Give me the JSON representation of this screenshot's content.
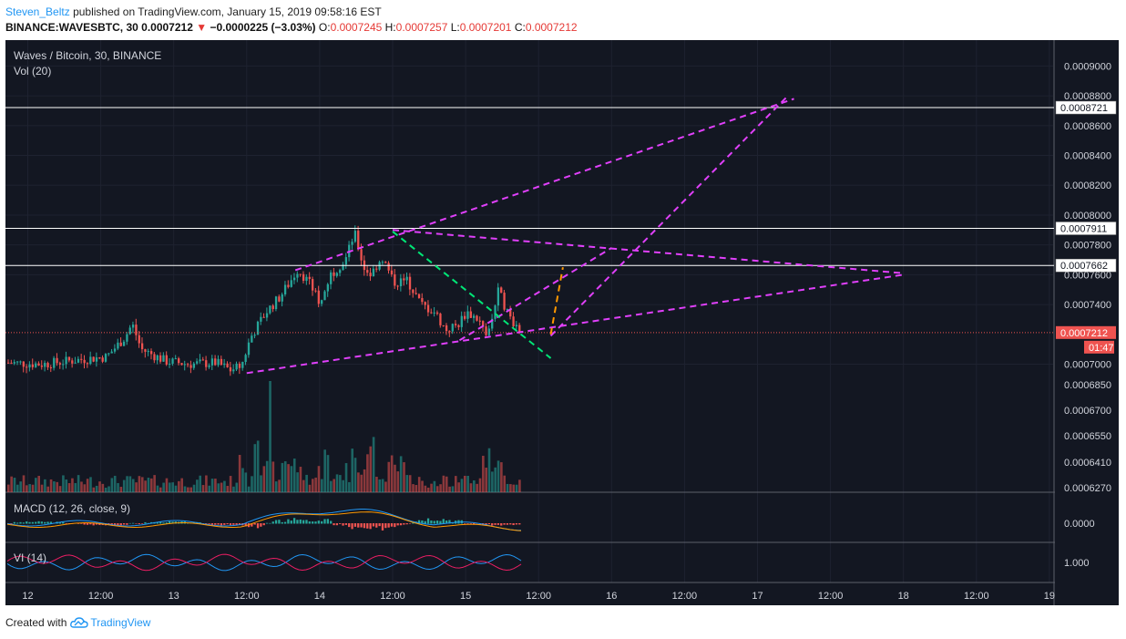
{
  "header": {
    "user": "Steven_Beltz",
    "published_text": "published on TradingView.com, January 15, 2019 09:58:16 EST",
    "symbol": "BINANCE:WAVESBTC, 30",
    "price": "0.0007212",
    "change_arrow": "▼",
    "change": "−0.0000225 (−3.03%)",
    "o_label": "O:",
    "o_value": "0.0007245",
    "h_label": "H:",
    "h_value": "0.0007257",
    "l_label": "L:",
    "l_value": "0.0007201",
    "c_label": "C:",
    "c_value": "0.0007212"
  },
  "pane_labels": {
    "main_title": "Waves / Bitcoin, 30, BINANCE",
    "volume": "Vol (20)",
    "macd": "MACD (12, 26, close, 9)",
    "vi": "VI (14)"
  },
  "footer": {
    "created_with": "Created with",
    "brand": "TradingView"
  },
  "colors": {
    "background": "#131722",
    "up": "#26a69a",
    "down": "#ef5350",
    "trendline": "#e040fb",
    "green_line": "#00e676",
    "orange_line": "#ff9800",
    "macd_line": "#2196f3",
    "signal_line": "#ff9800",
    "vi_plus": "#2196f3",
    "vi_minus": "#e91e63"
  },
  "chart_data": {
    "type": "candlestick",
    "price_axis": {
      "ticks": [
        "0.0009000",
        "0.0008800",
        "0.0008600",
        "0.0008400",
        "0.0008200",
        "0.0008000",
        "0.0007800",
        "0.0007600",
        "0.0007400",
        "0.0007000"
      ],
      "ylim": [
        0.00069,
        0.0009
      ]
    },
    "volume_axis": {
      "ticks": [
        "0.0006850",
        "0.0006700",
        "0.0006550",
        "0.0006410",
        "0.0006270"
      ]
    },
    "macd_axis": {
      "ticks": [
        "0.0000"
      ]
    },
    "vi_axis": {
      "ticks": [
        "1.000"
      ]
    },
    "time_axis": {
      "labels": [
        "12",
        "12:00",
        "13",
        "12:00",
        "14",
        "12:00",
        "15",
        "12:00",
        "16",
        "12:00",
        "17",
        "12:00",
        "18",
        "12:00",
        "19"
      ]
    },
    "horizontal_levels": [
      {
        "value": 0.0008721,
        "label": "0.0008721"
      },
      {
        "value": 0.0007911,
        "label": "0.0007911"
      },
      {
        "value": 0.0007662,
        "label": "0.0007662"
      }
    ],
    "last_price": {
      "value": 0.0007212,
      "label": "0.0007212",
      "countdown": "01:47"
    },
    "candles_summary": {
      "from_day": "12",
      "to_day": "15",
      "start": 0.0007,
      "pre_rally_low": 0.000694,
      "peak_high": 0.00079,
      "last_close": 0.0007212
    },
    "trendlines_magenta": [
      {
        "from": [
          "13 12:00",
          0.000694
        ],
        "to": [
          "18",
          0.00076
        ]
      },
      {
        "from": [
          "13 20:00",
          0.000763
        ],
        "to": [
          "17 06:00",
          0.000878
        ]
      },
      {
        "from": [
          "14 12:00",
          0.00079
        ],
        "to": [
          "18",
          0.000761
        ]
      },
      {
        "from": [
          "14 23:00",
          0.000716
        ],
        "to": [
          "16 00:00",
          0.000778
        ]
      },
      {
        "from": [
          "15 14:00",
          0.000719
        ],
        "to": [
          "17 05:00",
          0.00088
        ]
      }
    ],
    "trendline_green": {
      "from": [
        "14 12:00",
        0.000789
      ],
      "to": [
        "15 14:00",
        0.000704
      ]
    },
    "trendline_orange": {
      "from": [
        "15 14:00",
        0.00072
      ],
      "to": [
        "15 16:00",
        0.000765
      ]
    }
  }
}
